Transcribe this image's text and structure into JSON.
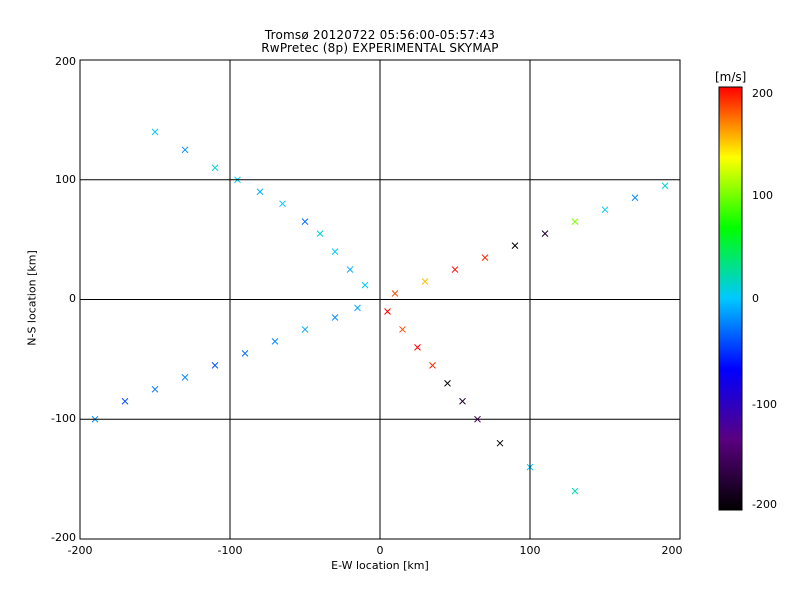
{
  "title_line1": "Tromsø 20120722 05:56:00-05:57:43",
  "title_line2": "RwPretec (8p) EXPERIMENTAL SKYMAP",
  "colorbar": {
    "unit": "[m/s]",
    "ticks": [
      "200",
      "100",
      "0",
      "-100",
      "-200"
    ],
    "tick_values": [
      200,
      100,
      0,
      -100,
      -200
    ],
    "range": [
      -200,
      200
    ],
    "colors": [
      "#000000",
      "#5a0080",
      "#0000ff",
      "#00c8ff",
      "#00ff00",
      "#ffff00",
      "#ff0000"
    ]
  },
  "chart_data": {
    "type": "scatter",
    "title": "Tromsø 20120722 05:56:00-05:57:43",
    "subtitle": "RwPretec (8p) EXPERIMENTAL SKYMAP",
    "xlabel": "E-W location [km]",
    "ylabel": "N-S location [km]",
    "xlim": [
      -200,
      200
    ],
    "ylim": [
      -200,
      200
    ],
    "x_ticks": [
      "-200",
      "-100",
      "0",
      "100",
      "200"
    ],
    "y_ticks": [
      "-200",
      "-100",
      "0",
      "100",
      "200"
    ],
    "grid": true,
    "markers": [
      "x",
      "dot"
    ],
    "color_by": "radial velocity [m/s]",
    "series": [
      {
        "points": [
          [
            -150,
            140,
            0
          ],
          [
            -130,
            125,
            -20
          ],
          [
            -110,
            110,
            10
          ],
          [
            -95,
            100,
            0
          ],
          [
            -80,
            90,
            -10
          ],
          [
            -65,
            80,
            0
          ],
          [
            -50,
            65,
            -30
          ],
          [
            -40,
            55,
            10
          ],
          [
            -30,
            40,
            0
          ],
          [
            -20,
            25,
            -10
          ],
          [
            -10,
            12,
            0
          ]
        ]
      },
      {
        "points": [
          [
            -190,
            -100,
            -20
          ],
          [
            -170,
            -85,
            -40
          ],
          [
            -150,
            -75,
            -30
          ],
          [
            -130,
            -65,
            -20
          ],
          [
            -110,
            -55,
            -40
          ],
          [
            -90,
            -45,
            -30
          ],
          [
            -70,
            -35,
            -20
          ],
          [
            -50,
            -25,
            -10
          ],
          [
            -30,
            -15,
            -20
          ],
          [
            -15,
            -7,
            -10
          ]
        ]
      },
      {
        "points": [
          [
            10,
            5,
            180
          ],
          [
            30,
            15,
            150
          ],
          [
            50,
            25,
            200
          ],
          [
            70,
            35,
            190
          ],
          [
            90,
            45,
            -200
          ],
          [
            110,
            55,
            -180
          ],
          [
            130,
            65,
            100
          ],
          [
            150,
            75,
            0
          ],
          [
            170,
            85,
            -20
          ],
          [
            190,
            95,
            10
          ]
        ]
      },
      {
        "points": [
          [
            5,
            -10,
            200
          ],
          [
            15,
            -25,
            180
          ],
          [
            25,
            -40,
            200
          ],
          [
            35,
            -55,
            190
          ],
          [
            45,
            -70,
            -200
          ],
          [
            55,
            -85,
            -180
          ],
          [
            65,
            -100,
            -150
          ],
          [
            80,
            -120,
            -200
          ],
          [
            100,
            -140,
            0
          ],
          [
            130,
            -160,
            20
          ]
        ]
      }
    ]
  }
}
